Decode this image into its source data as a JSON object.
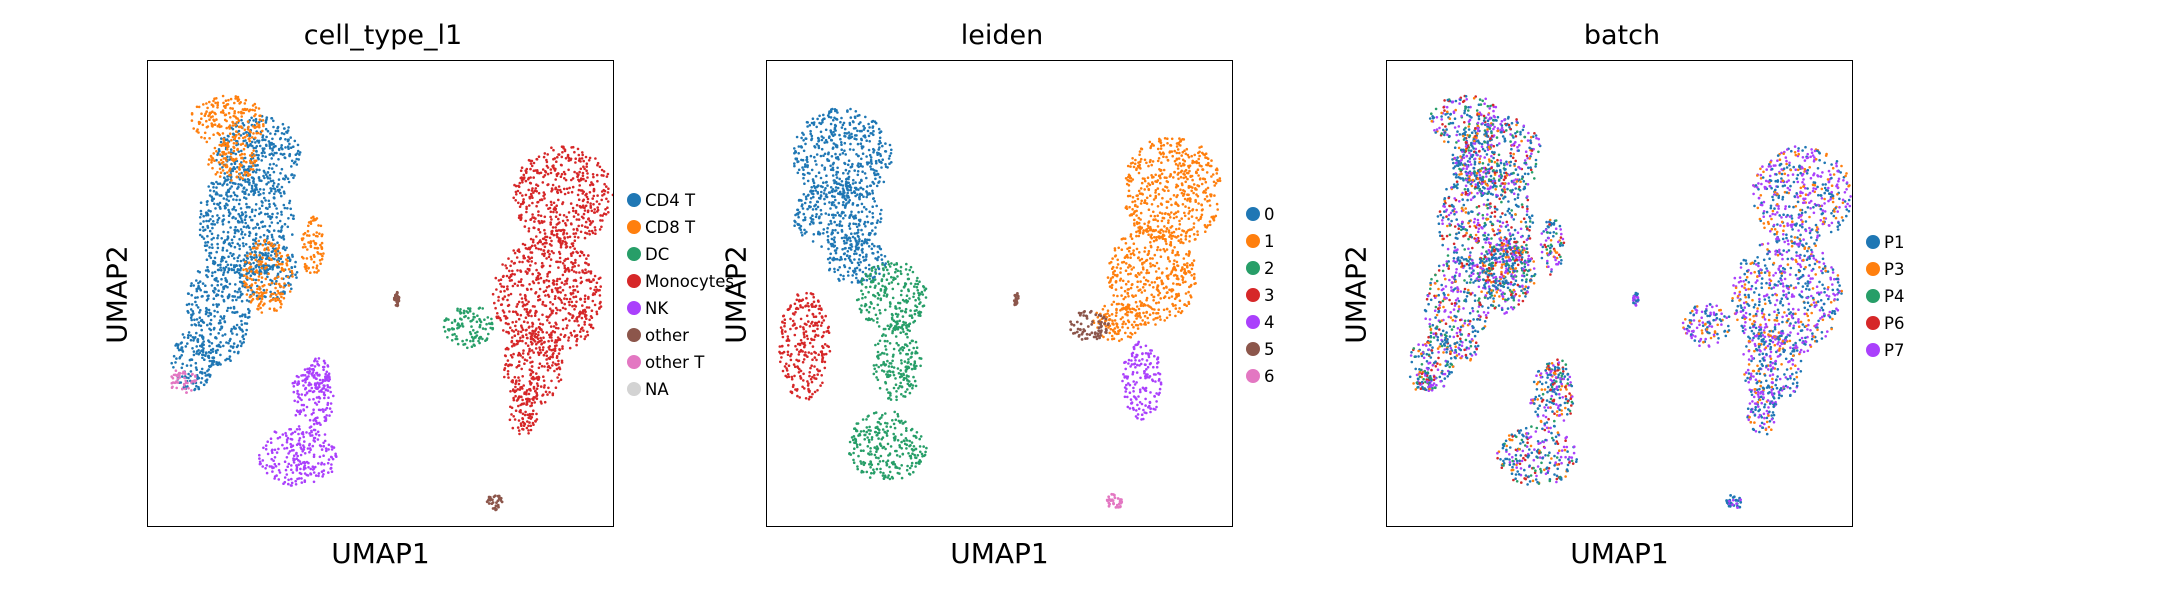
{
  "chart_data": [
    {
      "type": "scatter",
      "title": "cell_type_l1",
      "xlabel": "UMAP1",
      "ylabel": "UMAP2",
      "xticks": [],
      "yticks": [],
      "grid": false,
      "legend_placement": "right",
      "legend": [
        {
          "label": "CD4 T",
          "color": "#1f77b4"
        },
        {
          "label": "CD8 T",
          "color": "#ff7f0e"
        },
        {
          "label": "DC",
          "color": "#279e68"
        },
        {
          "label": "Monocytes",
          "color": "#d62728"
        },
        {
          "label": "NK",
          "color": "#aa40fc"
        },
        {
          "label": "other",
          "color": "#8c564b"
        },
        {
          "label": "other T",
          "color": "#e377c2"
        },
        {
          "label": "NA",
          "color": "#d3d3d3"
        }
      ]
    },
    {
      "type": "scatter",
      "title": "leiden",
      "xlabel": "UMAP1",
      "ylabel": "UMAP2",
      "xticks": [],
      "yticks": [],
      "grid": false,
      "legend_placement": "right",
      "legend": [
        {
          "label": "0",
          "color": "#1f77b4"
        },
        {
          "label": "1",
          "color": "#ff7f0e"
        },
        {
          "label": "2",
          "color": "#279e68"
        },
        {
          "label": "3",
          "color": "#d62728"
        },
        {
          "label": "4",
          "color": "#aa40fc"
        },
        {
          "label": "5",
          "color": "#8c564b"
        },
        {
          "label": "6",
          "color": "#e377c2"
        }
      ]
    },
    {
      "type": "scatter",
      "title": "batch",
      "xlabel": "UMAP1",
      "ylabel": "UMAP2",
      "xticks": [],
      "yticks": [],
      "grid": false,
      "legend_placement": "right",
      "legend": [
        {
          "label": "P1",
          "color": "#1f77b4"
        },
        {
          "label": "P3",
          "color": "#ff7f0e"
        },
        {
          "label": "P4",
          "color": "#279e68"
        },
        {
          "label": "P6",
          "color": "#d62728"
        },
        {
          "label": "P7",
          "color": "#aa40fc"
        }
      ]
    }
  ]
}
